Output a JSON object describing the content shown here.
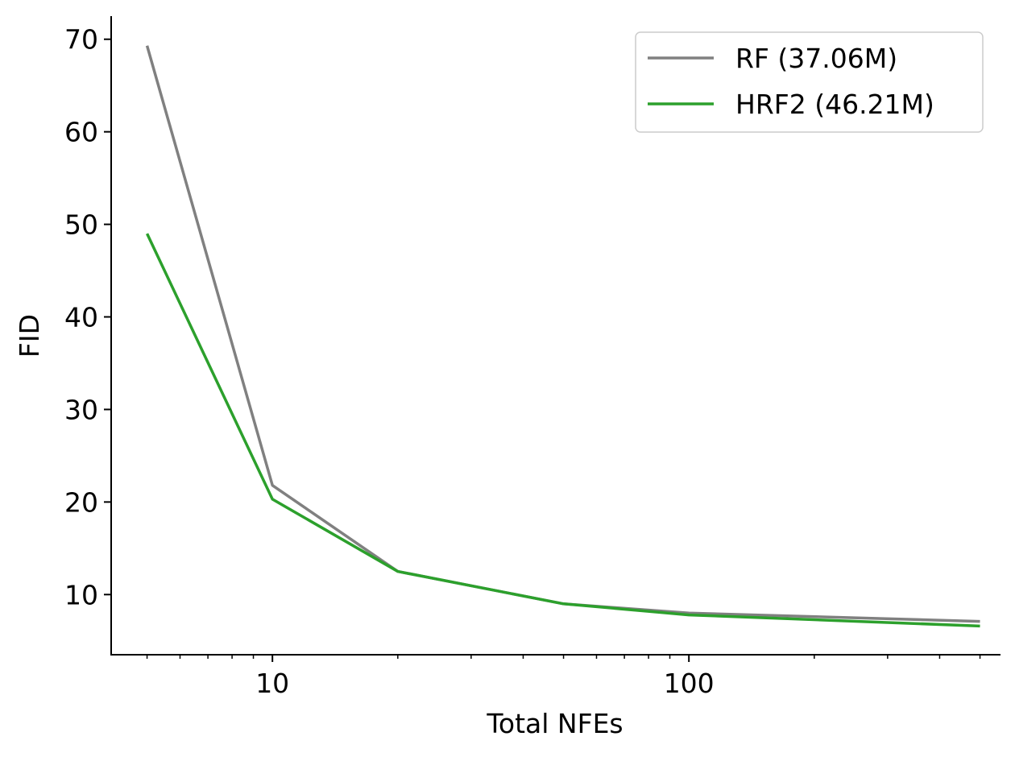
{
  "chart_data": {
    "type": "line",
    "title": "",
    "xlabel": "Total NFEs",
    "ylabel": "FID",
    "xscale": "log",
    "xlim": [
      4.1,
      560
    ],
    "ylim": [
      3.5,
      72.5
    ],
    "x_ticks": [
      10,
      100
    ],
    "x_tick_labels": [
      "10",
      "100"
    ],
    "y_ticks": [
      10,
      20,
      30,
      40,
      50,
      60,
      70
    ],
    "y_tick_labels": [
      "10",
      "20",
      "30",
      "40",
      "50",
      "60",
      "70"
    ],
    "grid": false,
    "legend_position": "top-right",
    "series": [
      {
        "name": "RF (37.06M)",
        "color": "#808080",
        "x": [
          5,
          10,
          20,
          50,
          100,
          500
        ],
        "y": [
          69.3,
          21.8,
          12.5,
          9.0,
          8.0,
          7.1
        ]
      },
      {
        "name": "HRF2 (46.21M)",
        "color": "#2ca02c",
        "x": [
          5,
          10,
          20,
          50,
          100,
          500
        ],
        "y": [
          49.0,
          20.3,
          12.5,
          9.0,
          7.8,
          6.6
        ]
      }
    ]
  }
}
